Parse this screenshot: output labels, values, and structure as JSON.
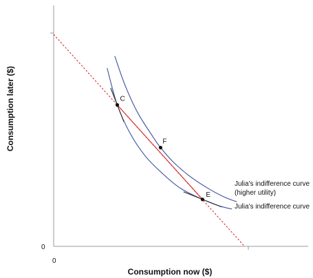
{
  "chart_data": {
    "type": "line",
    "title": "",
    "xlabel": "Consumption now ($)",
    "ylabel": "Consumption later ($)",
    "xlim": [
      0,
      100
    ],
    "ylim": [
      0,
      100
    ],
    "grid": false,
    "x_ticks": [
      "0"
    ],
    "y_ticks": [
      "0"
    ],
    "budget_line": {
      "extended": [
        [
          0,
          88
        ],
        [
          75,
          0
        ]
      ],
      "segment": [
        [
          25,
          58.7
        ],
        [
          58.5,
          19.5
        ]
      ]
    },
    "series": [
      {
        "label": "Julia's indifference curve",
        "points": [
          [
            21,
            74
          ],
          [
            25,
            58.7
          ],
          [
            30,
            47
          ],
          [
            36,
            37.5
          ],
          [
            43,
            30
          ],
          [
            50,
            24
          ],
          [
            58.5,
            19.5
          ],
          [
            65,
            16.8
          ],
          [
            70,
            15.5
          ]
        ]
      },
      {
        "label_lines": [
          "Julia's indifference curve",
          "(higher utility)"
        ],
        "points": [
          [
            24,
            79
          ],
          [
            28,
            67
          ],
          [
            33,
            55.5
          ],
          [
            39,
            45.5
          ],
          [
            42,
            41
          ],
          [
            47,
            35
          ],
          [
            53,
            29.5
          ],
          [
            60,
            24.5
          ],
          [
            67,
            20.5
          ],
          [
            72,
            18.5
          ]
        ]
      }
    ],
    "points": [
      {
        "label": "C",
        "x": 25,
        "y": 58.7
      },
      {
        "label": "F",
        "x": 42,
        "y": 41
      },
      {
        "label": "E",
        "x": 58.5,
        "y": 19.5
      }
    ],
    "tangents": [
      {
        "at": "C",
        "slope": -2.7,
        "half_length": 2.6
      },
      {
        "at": "E",
        "slope": -0.42,
        "half_length": 7.5
      }
    ]
  }
}
